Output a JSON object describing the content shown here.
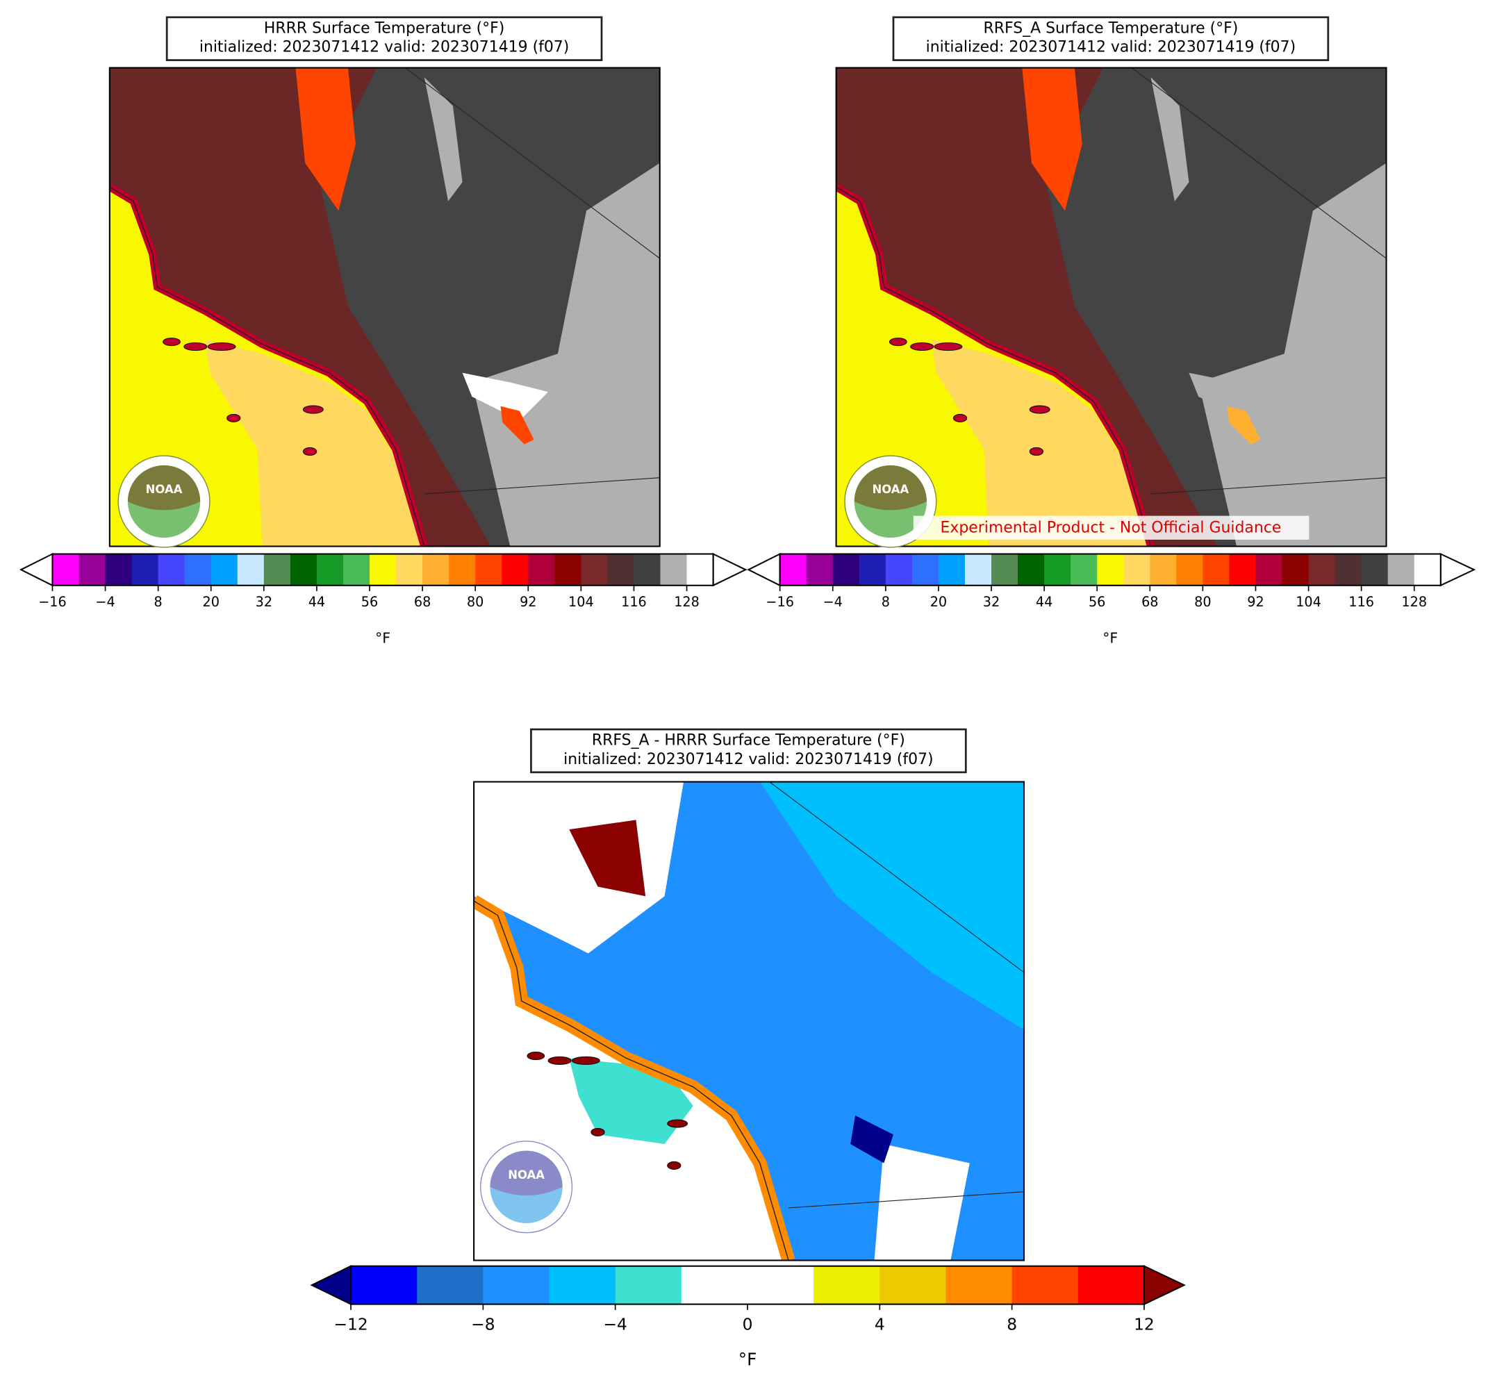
{
  "panels": [
    {
      "title": [
        "HRRR Surface Temperature (°F)",
        "initialized: 2023071412 valid: 2023071419 (f07)"
      ],
      "logo": "NOAA",
      "colorbar": {
        "colors": [
          "#ff00ff",
          "#990099",
          "#2e0080",
          "#1f1fb4",
          "#4646ff",
          "#2f6fff",
          "#00a0ff",
          "#c8e8ff",
          "#548c54",
          "#006400",
          "#159a26",
          "#4abc57",
          "#f8f800",
          "#ffd860",
          "#ffb030",
          "#ff8000",
          "#ff4500",
          "#ff0000",
          "#b0003a",
          "#8b0000",
          "#7a2a2a",
          "#503030",
          "#404040",
          "#b0b0b0",
          "#ffffff"
        ],
        "extend_colors": [
          "#ffffff",
          "#ffffff"
        ],
        "ticks": [
          "−16",
          "−4",
          "8",
          "20",
          "32",
          "44",
          "56",
          "68",
          "80",
          "92",
          "104",
          "116",
          "128"
        ],
        "label": "°F"
      }
    },
    {
      "title": [
        "RRFS_A Surface Temperature (°F)",
        "initialized: 2023071412 valid: 2023071419 (f07)"
      ],
      "logo": "NOAA",
      "note": "Experimental Product - Not Official Guidance",
      "colorbar": {
        "colors": [
          "#ff00ff",
          "#990099",
          "#2e0080",
          "#1f1fb4",
          "#4646ff",
          "#2f6fff",
          "#00a0ff",
          "#c8e8ff",
          "#548c54",
          "#006400",
          "#159a26",
          "#4abc57",
          "#f8f800",
          "#ffd860",
          "#ffb030",
          "#ff8000",
          "#ff4500",
          "#ff0000",
          "#b0003a",
          "#8b0000",
          "#7a2a2a",
          "#503030",
          "#404040",
          "#b0b0b0",
          "#ffffff"
        ],
        "extend_colors": [
          "#ffffff",
          "#ffffff"
        ],
        "ticks": [
          "−16",
          "−4",
          "8",
          "20",
          "32",
          "44",
          "56",
          "68",
          "80",
          "92",
          "104",
          "116",
          "128"
        ],
        "label": "°F"
      }
    },
    {
      "title": [
        "RRFS_A - HRRR Surface Temperature (°F)",
        "initialized: 2023071412 valid: 2023071419 (f07)"
      ],
      "logo": "NOAA",
      "colorbar": {
        "colors": [
          "#0000ff",
          "#1e6fc8",
          "#1e90ff",
          "#00bfff",
          "#40e0d0",
          "#ffffff",
          "#ffffff",
          "#eeee00",
          "#eec900",
          "#ff8c00",
          "#ff4500",
          "#ff0000"
        ],
        "extend_colors": [
          "#00008b",
          "#8b0000"
        ],
        "ticks": [
          "−12",
          "−8",
          "−4",
          "0",
          "4",
          "8",
          "12"
        ],
        "label": "°F"
      }
    }
  ]
}
